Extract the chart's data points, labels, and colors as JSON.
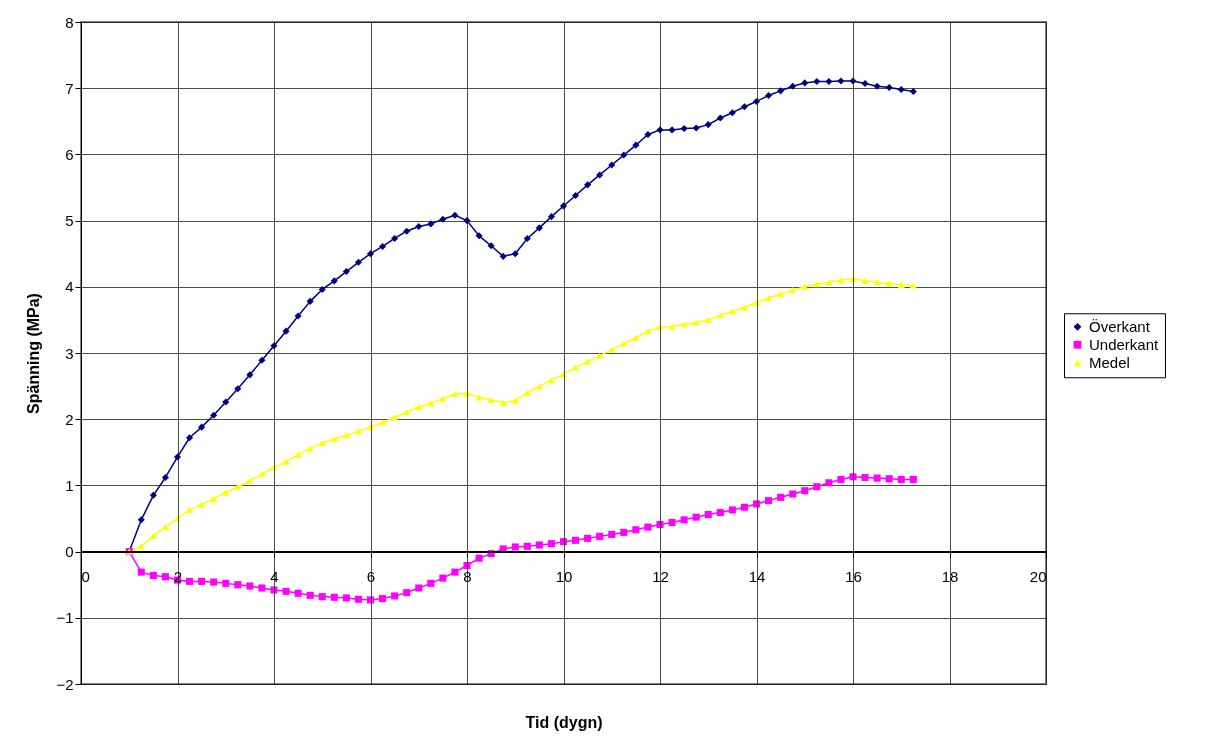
{
  "chart_data": {
    "type": "line",
    "xlabel": "Tid (dygn)",
    "ylabel": "Spänning (MPa)",
    "x": [
      1,
      1.25,
      1.5,
      1.75,
      2,
      2.25,
      2.5,
      2.75,
      3,
      3.25,
      3.5,
      3.75,
      4,
      4.25,
      4.5,
      4.75,
      5,
      5.25,
      5.5,
      5.75,
      6,
      6.25,
      6.5,
      6.75,
      7,
      7.25,
      7.5,
      7.75,
      8,
      8.25,
      8.5,
      8.75,
      9,
      9.25,
      9.5,
      9.75,
      10,
      10.25,
      10.5,
      10.75,
      11,
      11.25,
      11.5,
      11.75,
      12,
      12.25,
      12.5,
      12.75,
      13,
      13.25,
      13.5,
      13.75,
      14,
      14.25,
      14.5,
      14.75,
      15,
      15.25,
      15.5,
      15.75,
      16,
      16.25,
      16.5,
      16.75,
      17,
      17.25
    ],
    "series": [
      {
        "name": "Överkant",
        "color": "#000080",
        "marker": "diamond",
        "values": [
          0,
          0.48,
          0.85,
          1.12,
          1.43,
          1.72,
          1.88,
          2.06,
          2.26,
          2.46,
          2.67,
          2.89,
          3.11,
          3.33,
          3.56,
          3.78,
          3.96,
          4.09,
          4.23,
          4.37,
          4.5,
          4.61,
          4.73,
          4.84,
          4.91,
          4.95,
          5.02,
          5.08,
          5.0,
          4.77,
          4.62,
          4.46,
          4.5,
          4.73,
          4.89,
          5.06,
          5.22,
          5.38,
          5.54,
          5.69,
          5.84,
          5.99,
          6.14,
          6.3,
          6.37,
          6.37,
          6.39,
          6.4,
          6.45,
          6.55,
          6.63,
          6.72,
          6.8,
          6.89,
          6.96,
          7.03,
          7.08,
          7.1,
          7.1,
          7.11,
          7.11,
          7.07,
          7.03,
          7.01,
          6.98,
          6.95
        ]
      },
      {
        "name": "Underkant",
        "color": "#ff00ff",
        "marker": "square",
        "values": [
          0,
          -0.31,
          -0.36,
          -0.38,
          -0.43,
          -0.45,
          -0.45,
          -0.46,
          -0.48,
          -0.5,
          -0.52,
          -0.55,
          -0.58,
          -0.6,
          -0.63,
          -0.66,
          -0.68,
          -0.69,
          -0.7,
          -0.72,
          -0.73,
          -0.71,
          -0.67,
          -0.62,
          -0.55,
          -0.48,
          -0.4,
          -0.31,
          -0.21,
          -0.1,
          -0.03,
          0.04,
          0.07,
          0.08,
          0.1,
          0.12,
          0.15,
          0.17,
          0.2,
          0.23,
          0.26,
          0.29,
          0.33,
          0.37,
          0.41,
          0.44,
          0.48,
          0.52,
          0.56,
          0.59,
          0.63,
          0.67,
          0.72,
          0.77,
          0.82,
          0.87,
          0.92,
          0.98,
          1.04,
          1.09,
          1.13,
          1.12,
          1.11,
          1.1,
          1.09,
          1.09
        ]
      },
      {
        "name": "Medel",
        "color": "#ffff00",
        "marker": "triangle",
        "values": [
          0,
          0.08,
          0.24,
          0.37,
          0.5,
          0.63,
          0.71,
          0.8,
          0.89,
          0.98,
          1.07,
          1.17,
          1.27,
          1.36,
          1.46,
          1.56,
          1.64,
          1.7,
          1.76,
          1.82,
          1.88,
          1.95,
          2.03,
          2.11,
          2.18,
          2.24,
          2.31,
          2.38,
          2.39,
          2.33,
          2.29,
          2.25,
          2.28,
          2.4,
          2.5,
          2.59,
          2.68,
          2.78,
          2.87,
          2.96,
          3.05,
          3.14,
          3.23,
          3.33,
          3.39,
          3.4,
          3.43,
          3.46,
          3.5,
          3.57,
          3.63,
          3.69,
          3.76,
          3.83,
          3.89,
          3.95,
          4.0,
          4.04,
          4.07,
          4.1,
          4.12,
          4.09,
          4.07,
          4.05,
          4.03,
          4.02
        ]
      }
    ],
    "xlim": [
      0,
      20
    ],
    "xticks": [
      0,
      2,
      4,
      6,
      8,
      10,
      12,
      14,
      16,
      18,
      20
    ],
    "ylim": [
      -2,
      8
    ],
    "yticks": [
      -2,
      -1,
      0,
      1,
      2,
      3,
      4,
      5,
      6,
      7,
      8
    ],
    "grid": true,
    "legend": "right",
    "line_style": "solid"
  }
}
